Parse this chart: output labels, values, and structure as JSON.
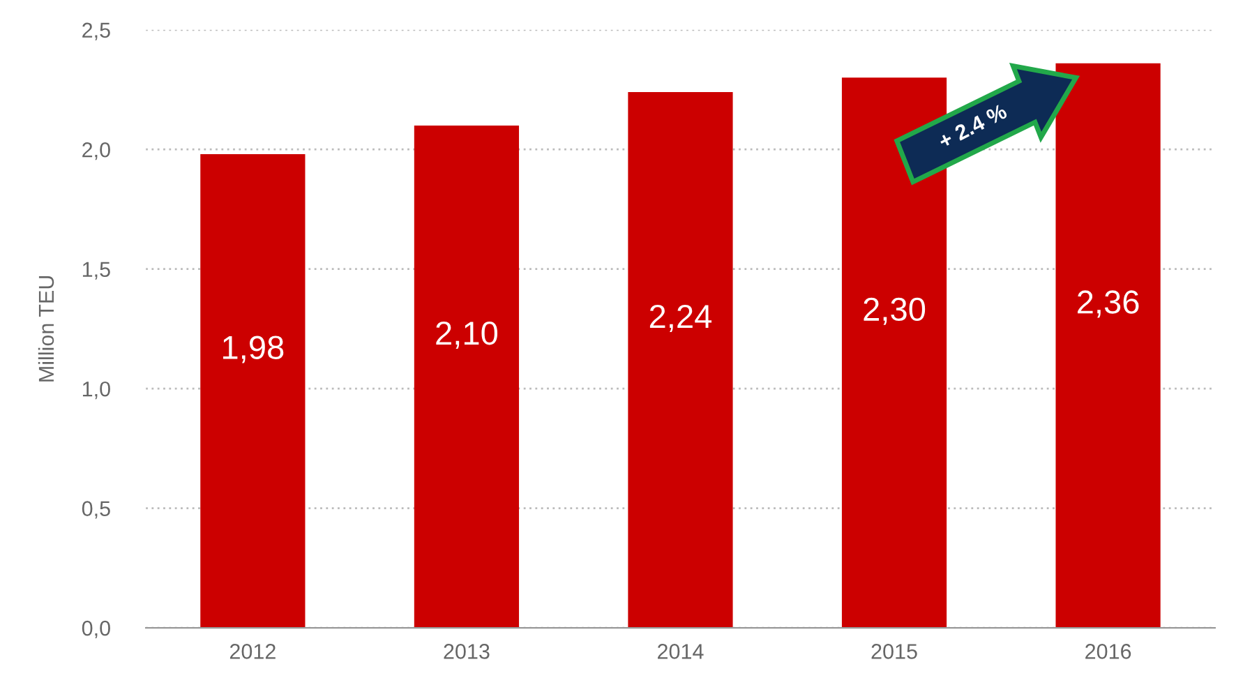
{
  "chart_data": {
    "type": "bar",
    "ylabel": "Million TEU",
    "categories": [
      "2012",
      "2013",
      "2014",
      "2015",
      "2016"
    ],
    "values": [
      1.98,
      2.1,
      2.24,
      2.3,
      2.36
    ],
    "value_labels": [
      "1,98",
      "2,10",
      "2,24",
      "2,30",
      "2,36"
    ],
    "color": "#cc0000",
    "ylim": [
      0,
      2.5
    ],
    "yticks": [
      {
        "value": 0,
        "label": "0,0"
      },
      {
        "value": 0.5,
        "label": "0,5"
      },
      {
        "value": 1.0,
        "label": "1,0"
      },
      {
        "value": 1.5,
        "label": "1,5"
      },
      {
        "value": 2.0,
        "label": "2,0"
      },
      {
        "value": 2.5,
        "label": "2,5"
      }
    ],
    "grid": "y",
    "annotations": [
      "+ 2.4 %"
    ]
  }
}
